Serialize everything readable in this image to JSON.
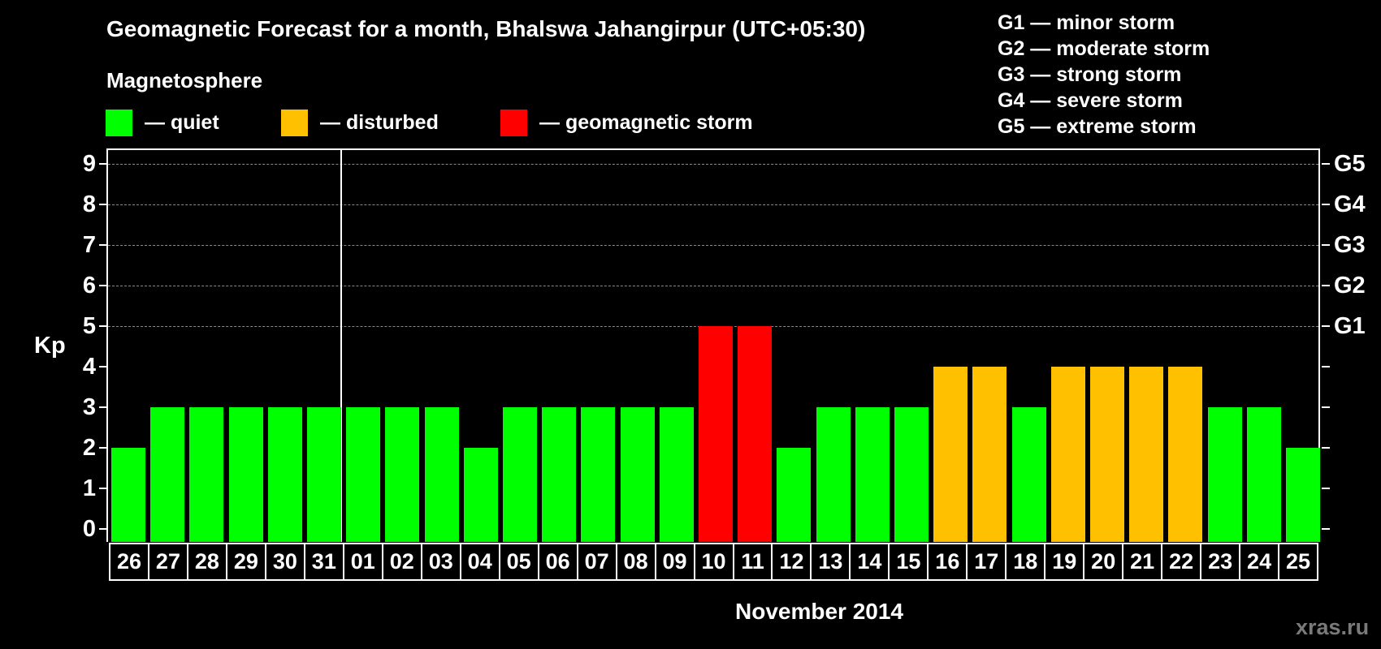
{
  "header": {
    "title": "Geomagnetic Forecast for a month, Bhalswa Jahangirpur (UTC+05:30)",
    "subtitle": "Magnetosphere"
  },
  "legend": [
    {
      "label": "— quiet",
      "color": "#00ff00"
    },
    {
      "label": "— disturbed",
      "color": "#ffc000"
    },
    {
      "label": "— geomagnetic storm",
      "color": "#ff0000"
    }
  ],
  "storm_scale": [
    "G1 — minor storm",
    "G2 — moderate storm",
    "G3 — strong storm",
    "G4 — severe storm",
    "G5 — extreme storm"
  ],
  "axes": {
    "ylabel": "Kp",
    "y_ticks": [
      "0",
      "1",
      "2",
      "3",
      "4",
      "5",
      "6",
      "7",
      "8",
      "9"
    ],
    "right_ticks": {
      "5": "G1",
      "6": "G2",
      "7": "G3",
      "8": "G4",
      "9": "G5"
    },
    "xlabel": "November 2014"
  },
  "watermark": "xras.ru",
  "colors": {
    "quiet": "#00ff00",
    "disturbed": "#ffc000",
    "storm": "#ff0000",
    "grid": "#8a8a8a"
  },
  "chart_data": {
    "type": "bar",
    "title": "Geomagnetic Forecast for a month, Bhalswa Jahangirpur (UTC+05:30)",
    "xlabel": "November 2014",
    "ylabel": "Kp",
    "ylim": [
      0,
      9
    ],
    "grid": true,
    "legend_position": "top",
    "categories": [
      "26",
      "27",
      "28",
      "29",
      "30",
      "31",
      "01",
      "02",
      "03",
      "04",
      "05",
      "06",
      "07",
      "08",
      "09",
      "10",
      "11",
      "12",
      "13",
      "14",
      "15",
      "16",
      "17",
      "18",
      "19",
      "20",
      "21",
      "22",
      "23",
      "24",
      "25"
    ],
    "values": [
      2,
      3,
      3,
      3,
      3,
      3,
      3,
      3,
      3,
      2,
      3,
      3,
      3,
      3,
      3,
      5,
      5,
      2,
      3,
      3,
      3,
      4,
      4,
      3,
      4,
      4,
      4,
      4,
      3,
      3,
      2
    ],
    "status": [
      "quiet",
      "quiet",
      "quiet",
      "quiet",
      "quiet",
      "quiet",
      "quiet",
      "quiet",
      "quiet",
      "quiet",
      "quiet",
      "quiet",
      "quiet",
      "quiet",
      "quiet",
      "storm",
      "storm",
      "quiet",
      "quiet",
      "quiet",
      "quiet",
      "disturbed",
      "disturbed",
      "quiet",
      "disturbed",
      "disturbed",
      "disturbed",
      "disturbed",
      "quiet",
      "quiet",
      "quiet"
    ],
    "month_separator_after": "31",
    "right_axis_labels": {
      "5": "G1",
      "6": "G2",
      "7": "G3",
      "8": "G4",
      "9": "G5"
    }
  }
}
